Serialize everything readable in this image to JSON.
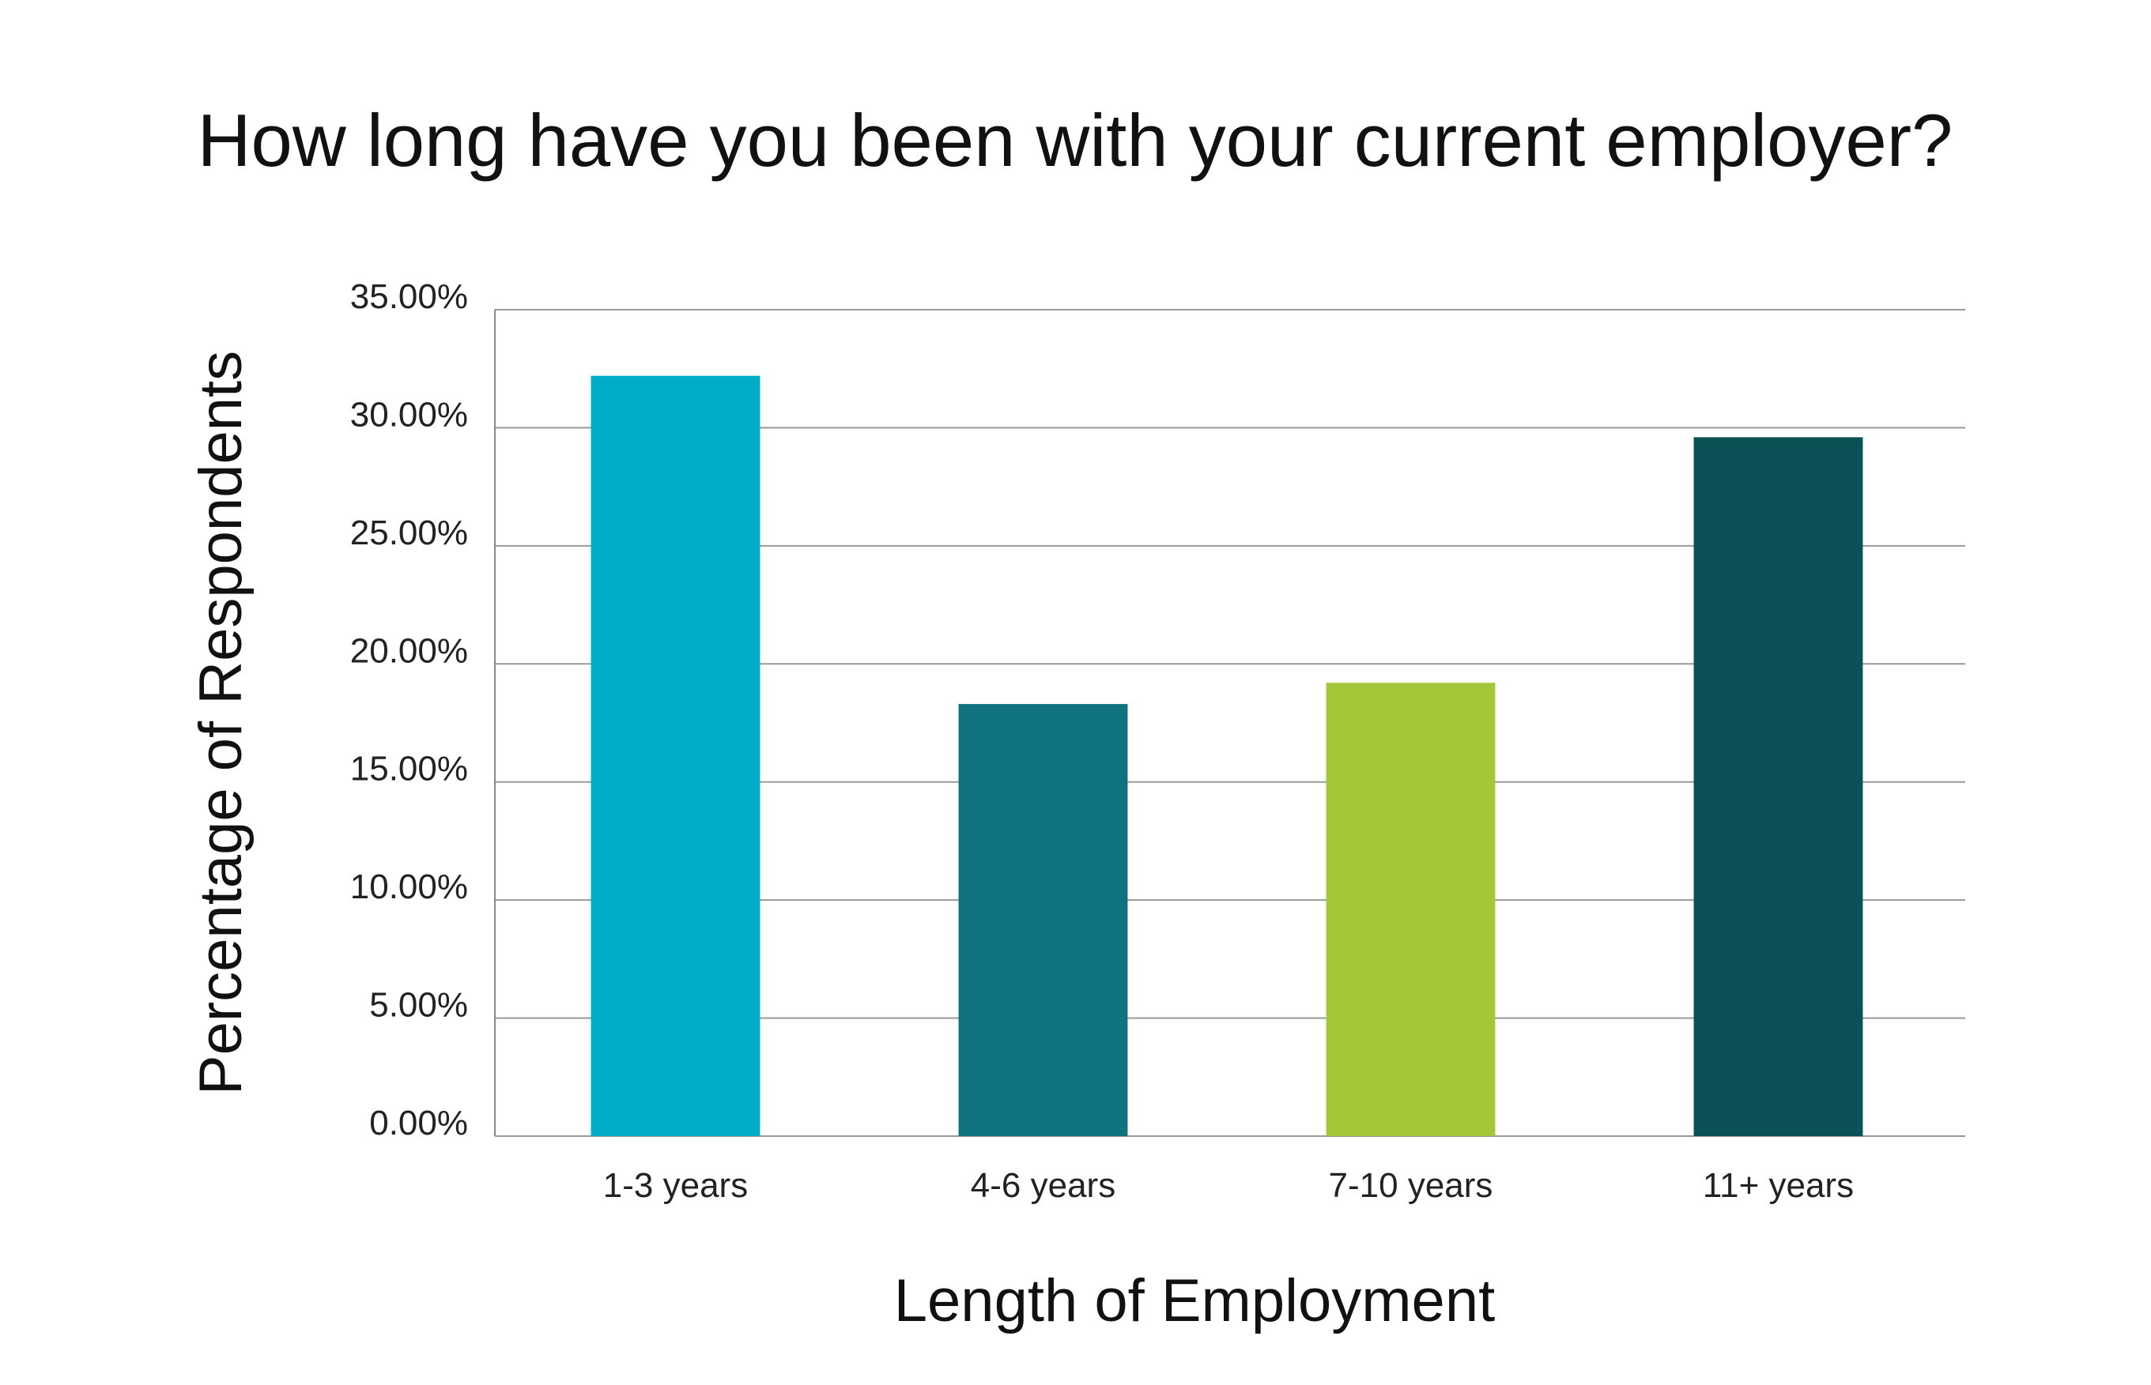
{
  "chart_data": {
    "type": "bar",
    "title": "How long have you been with your current employer?",
    "xlabel": "Length of Employment",
    "ylabel": "Percentage of Respondents",
    "categories": [
      "1-3 years",
      "4-6 years",
      "7-10 years",
      "11+ years"
    ],
    "values": [
      32.2,
      18.3,
      19.2,
      29.6
    ],
    "bar_colors": [
      "#00adc8",
      "#11727f",
      "#a2c83a",
      "#0b5156"
    ],
    "ylim": [
      0,
      35
    ],
    "yticks": [
      0,
      5,
      10,
      15,
      20,
      25,
      30,
      35
    ],
    "ytick_labels": [
      "0.00%",
      "5.00%",
      "10.00%",
      "15.00%",
      "20.00%",
      "25.00%",
      "30.00%",
      "35.00%"
    ],
    "grid": true,
    "legend": "none"
  }
}
